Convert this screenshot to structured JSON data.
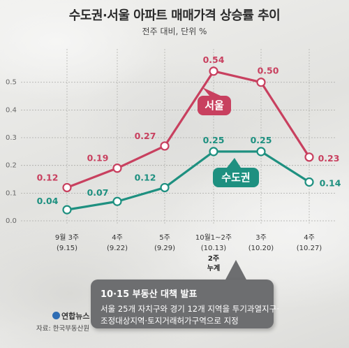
{
  "title": "수도권·서울 아파트 매매가격 상승률 추이",
  "subtitle": "전주 대비, 단위 %",
  "chart_data": {
    "type": "line",
    "categories": [
      [
        "9월 3주",
        "(9.15)"
      ],
      [
        "4주",
        "(9.22)"
      ],
      [
        "5주",
        "(9.29)"
      ],
      [
        "10월1~2주",
        "(10.13)"
      ],
      [
        "3주",
        "(10.20)"
      ],
      [
        "4주",
        "(10.27)"
      ]
    ],
    "category_note": [
      "2주",
      "누계"
    ],
    "ylim": [
      0,
      0.58
    ],
    "yticks": [
      "0.0",
      "0.1",
      "0.2",
      "0.3",
      "0.4",
      "0.5"
    ],
    "ytick_values": [
      0,
      0.1,
      0.2,
      0.3,
      0.4,
      0.5
    ],
    "grid": true,
    "series": [
      {
        "name": "서울",
        "color": "#c8405f",
        "values": [
          0.12,
          0.19,
          0.27,
          0.54,
          0.5,
          0.23
        ],
        "labels": [
          "0.12",
          "0.19",
          "0.27",
          "0.54",
          "0.50",
          "0.23"
        ]
      },
      {
        "name": "수도권",
        "color": "#1e9080",
        "values": [
          0.04,
          0.07,
          0.12,
          0.25,
          0.25,
          0.14
        ],
        "labels": [
          "0.04",
          "0.07",
          "0.12",
          "0.25",
          "0.25",
          "0.14"
        ]
      }
    ]
  },
  "callout": {
    "title": "10·15 부동산 대책 발표",
    "line1": "서울 25개 자치구와 경기 12개 지역을 투기과열지구·",
    "line2": "조정대상지역·토지거래허가구역으로 지정"
  },
  "logo": "연합뉴스",
  "source": "자료: 한국부동산원"
}
